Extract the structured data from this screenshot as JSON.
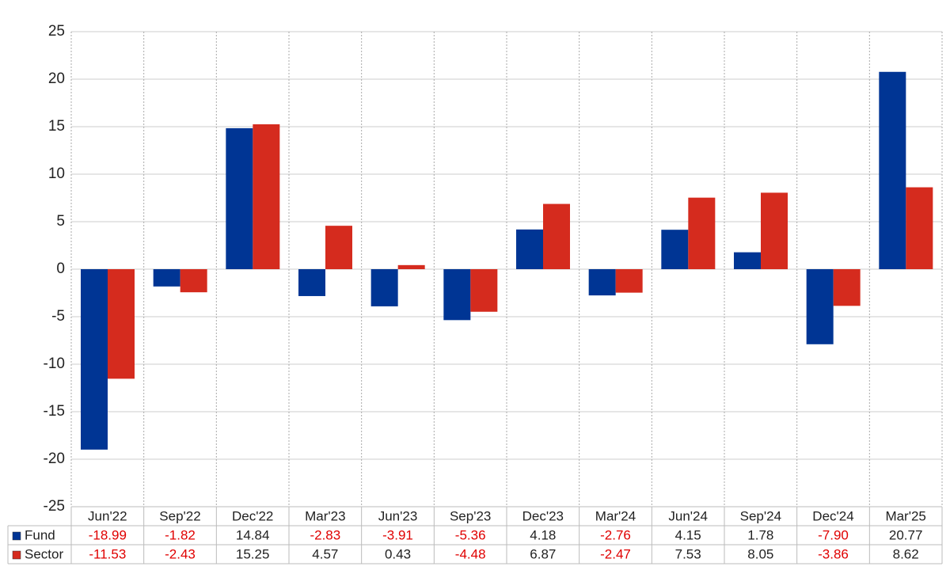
{
  "chart_data": {
    "type": "bar",
    "categories": [
      "Jun'22",
      "Sep'22",
      "Dec'22",
      "Mar'23",
      "Jun'23",
      "Sep'23",
      "Dec'23",
      "Mar'24",
      "Jun'24",
      "Sep'24",
      "Dec'24",
      "Mar'25"
    ],
    "series": [
      {
        "name": "Fund",
        "color": "#003594",
        "values": [
          -18.99,
          -1.82,
          14.84,
          -2.83,
          -3.91,
          -5.36,
          4.18,
          -2.76,
          4.15,
          1.78,
          -7.9,
          20.77
        ],
        "value_labels": [
          "-18.99",
          "-1.82",
          "14.84",
          "-2.83",
          "-3.91",
          "-5.36",
          "4.18",
          "-2.76",
          "4.15",
          "1.78",
          "-7.90",
          "20.77"
        ]
      },
      {
        "name": "Sector",
        "color": "#d52b1e",
        "values": [
          -11.53,
          -2.43,
          15.25,
          4.57,
          0.43,
          -4.48,
          6.87,
          -2.47,
          7.53,
          8.05,
          -3.86,
          8.62
        ],
        "value_labels": [
          "-11.53",
          "-2.43",
          "15.25",
          "4.57",
          "0.43",
          "-4.48",
          "6.87",
          "-2.47",
          "7.53",
          "8.05",
          "-3.86",
          "8.62"
        ]
      }
    ],
    "ylim": [
      -25,
      25
    ],
    "yticks": [
      -25,
      -20,
      -15,
      -10,
      -5,
      0,
      5,
      10,
      15,
      20,
      25
    ],
    "grid": true
  }
}
